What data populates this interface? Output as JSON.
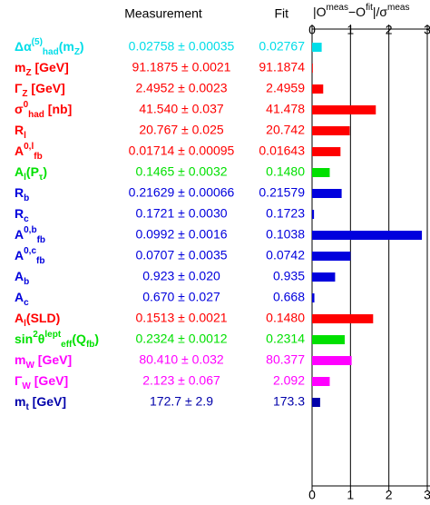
{
  "chart_data": {
    "type": "bar",
    "headers": {
      "measurement": "Measurement",
      "fit": "Fit",
      "pull": [
        {
          "t": "|O"
        },
        {
          "sup": "meas"
        },
        {
          "t": "−O"
        },
        {
          "sup": "fit"
        },
        {
          "t": "|/σ"
        },
        {
          "sup": "meas"
        }
      ]
    },
    "categories": [
      [
        {
          "t": "Δα"
        },
        {
          "sup": "(5)"
        },
        {
          "sub": "had"
        },
        {
          "t": "(m"
        },
        {
          "sub": "Z"
        },
        {
          "t": ")"
        }
      ],
      [
        {
          "t": "m"
        },
        {
          "sub": "Z"
        },
        {
          "t": " [GeV]"
        }
      ],
      [
        {
          "t": "Γ"
        },
        {
          "sub": "Z"
        },
        {
          "t": " [GeV]"
        }
      ],
      [
        {
          "t": "σ"
        },
        {
          "sup": "0"
        },
        {
          "sub": "had"
        },
        {
          "t": " [nb]"
        }
      ],
      [
        {
          "t": "R"
        },
        {
          "sub": "l"
        }
      ],
      [
        {
          "t": "A"
        },
        {
          "sup": "0,l"
        },
        {
          "sub": "fb"
        }
      ],
      [
        {
          "t": "A"
        },
        {
          "sub": "l"
        },
        {
          "t": "(P"
        },
        {
          "sub": "τ"
        },
        {
          "t": ")"
        }
      ],
      [
        {
          "t": "R"
        },
        {
          "sub": "b"
        }
      ],
      [
        {
          "t": "R"
        },
        {
          "sub": "c"
        }
      ],
      [
        {
          "t": "A"
        },
        {
          "sup": "0,b"
        },
        {
          "sub": "fb"
        }
      ],
      [
        {
          "t": "A"
        },
        {
          "sup": "0,c"
        },
        {
          "sub": "fb"
        }
      ],
      [
        {
          "t": "A"
        },
        {
          "sub": "b"
        }
      ],
      [
        {
          "t": "A"
        },
        {
          "sub": "c"
        }
      ],
      [
        {
          "t": "A"
        },
        {
          "sub": "l"
        },
        {
          "t": "(SLD)"
        }
      ],
      [
        {
          "t": "sin"
        },
        {
          "sup": "2"
        },
        {
          "t": "θ"
        },
        {
          "sup": "lept"
        },
        {
          "sub": "eff"
        },
        {
          "t": "(Q"
        },
        {
          "sub": "fb"
        },
        {
          "t": ")"
        }
      ],
      [
        {
          "t": "m"
        },
        {
          "sub": "W"
        },
        {
          "t": " [GeV]"
        }
      ],
      [
        {
          "t": "Γ"
        },
        {
          "sub": "W"
        },
        {
          "t": " [GeV]"
        }
      ],
      [
        {
          "t": "m"
        },
        {
          "sub": "t"
        },
        {
          "t": " [GeV]"
        }
      ]
    ],
    "measurement": [
      "0.02758 ± 0.00035",
      "91.1875 ± 0.0021",
      "2.4952 ± 0.0023",
      "41.540 ± 0.037",
      "20.767 ± 0.025",
      "0.01714 ± 0.00095",
      "0.1465 ± 0.0032",
      "0.21629 ± 0.00066",
      "0.1721 ± 0.0030",
      "0.0992 ± 0.0016",
      "0.0707 ± 0.0035",
      "0.923 ± 0.020",
      "0.670 ± 0.027",
      "0.1513 ± 0.0021",
      "0.2324 ± 0.0012",
      "80.410 ± 0.032",
      "2.123 ± 0.067",
      "172.7 ± 2.9"
    ],
    "fit": [
      "0.02767",
      "91.1874",
      "2.4959",
      "41.478",
      "20.742",
      "0.01643",
      "0.1480",
      "0.21579",
      "0.1723",
      "0.1038",
      "0.0742",
      "0.935",
      "0.668",
      "0.1480",
      "0.2314",
      "80.377",
      "2.092",
      "173.3"
    ],
    "values": [
      0.25,
      0.02,
      0.29,
      1.66,
      0.98,
      0.74,
      0.46,
      0.77,
      0.05,
      2.86,
      1.0,
      0.6,
      0.06,
      1.59,
      0.85,
      1.03,
      0.46,
      0.21
    ],
    "colors": [
      "#00dde8",
      "#ff0000",
      "#ff0000",
      "#ff0000",
      "#ff0000",
      "#ff0000",
      "#00e000",
      "#0000dd",
      "#0000dd",
      "#0000dd",
      "#0000dd",
      "#0000dd",
      "#0000dd",
      "#ff0000",
      "#00e000",
      "#ff00ff",
      "#ff00ff",
      "#0000aa"
    ],
    "xlim": [
      0,
      3
    ],
    "xticks": [
      0,
      1,
      2,
      3
    ]
  }
}
